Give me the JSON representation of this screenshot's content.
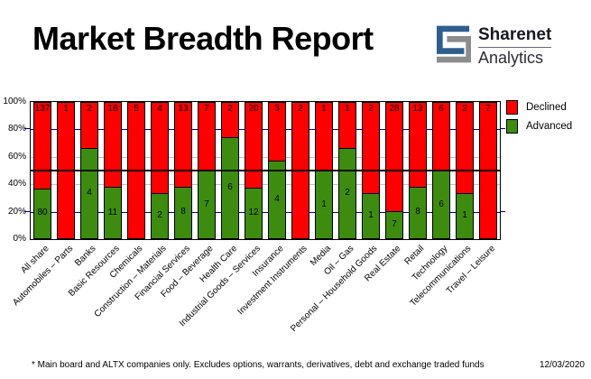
{
  "header": {
    "title": "Market Breadth Report",
    "logo": {
      "name": "Sharenet",
      "sub": "Analytics",
      "blue": "#2e5e8e",
      "gray": "#8c8c8c"
    }
  },
  "legend": [
    {
      "label": "Declined",
      "color": "#ff0000"
    },
    {
      "label": "Advanced",
      "color": "#3d8c10"
    }
  ],
  "footer": {
    "note": "* Main board and ALTX companies only. Excludes options, warrants, derivatives, debt and exchange traded funds",
    "date": "12/03/2020"
  },
  "chart_data": {
    "type": "bar",
    "stacked": true,
    "normalized": "each bar scaled to 100%, green = advanced share, red = declined share",
    "title": "Market Breadth Report",
    "categories": [
      "All share",
      "Automobiles – Parts",
      "Banks",
      "Basic Resources",
      "Chemicals",
      "Construction – Materials",
      "Financial Services",
      "Food – Beverage",
      "Health Care",
      "Industrial Goods – Services",
      "Insurance",
      "Investment Instruments",
      "Media",
      "Oil – Gas",
      "Personal – Household Goods",
      "Real Estate",
      "Retail",
      "Technology",
      "Telecommunications",
      "Travel – Leisure"
    ],
    "series": [
      {
        "name": "Advanced",
        "color": "#3d8c10",
        "values": [
          80,
          0,
          4,
          11,
          0,
          2,
          8,
          7,
          6,
          12,
          4,
          0,
          1,
          2,
          1,
          7,
          8,
          6,
          1,
          0
        ]
      },
      {
        "name": "Declined",
        "color": "#ff0000",
        "values": [
          137,
          1,
          2,
          18,
          5,
          4,
          13,
          7,
          2,
          20,
          3,
          2,
          1,
          1,
          2,
          28,
          13,
          6,
          2,
          7
        ]
      }
    ],
    "y_ticks": [
      "0%",
      "20%",
      "40%",
      "60%",
      "80%",
      "100%"
    ],
    "ylim": [
      0,
      100
    ],
    "gridlines": [
      {
        "value": 80,
        "color": "#000080"
      },
      {
        "value": 60,
        "color": "#c0c0c0"
      },
      {
        "value": 40,
        "color": "#c0c0c0"
      },
      {
        "value": 20,
        "color": "#000080"
      }
    ],
    "midline": {
      "value": 50,
      "color": "#000000"
    },
    "legend_position": "top-right"
  }
}
